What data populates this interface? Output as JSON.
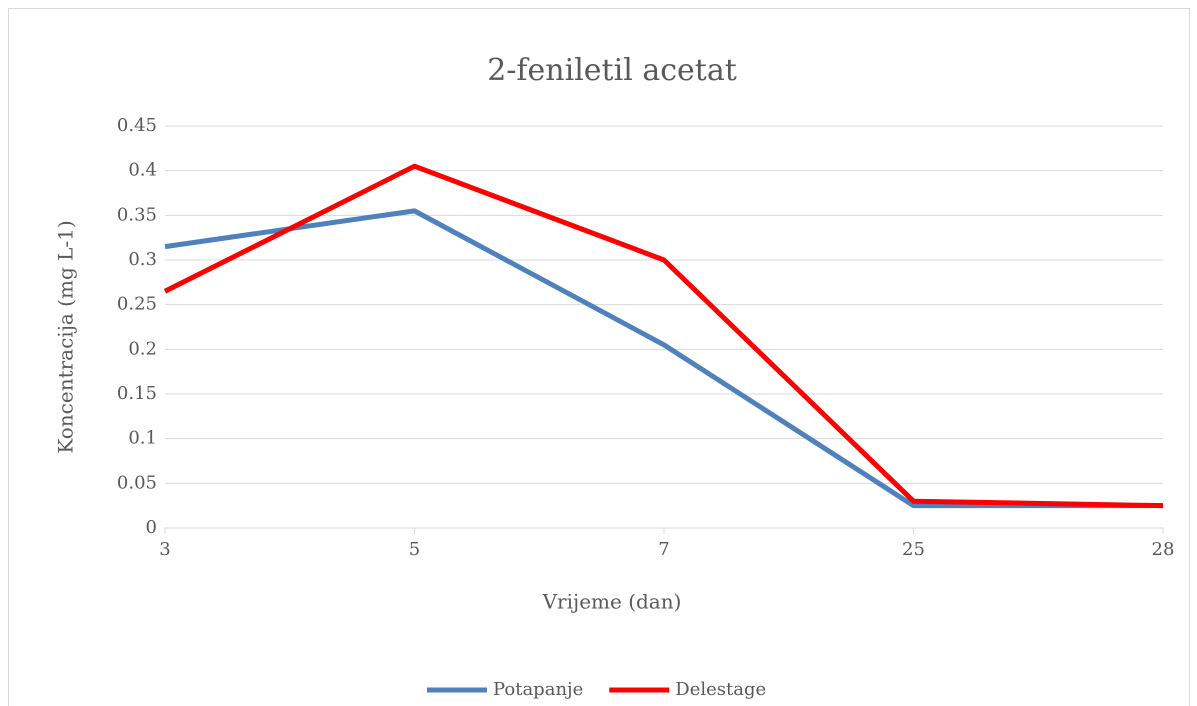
{
  "chart_data": {
    "type": "line",
    "title": "2-feniletil acetat",
    "x_label": "Vrijeme (dan)",
    "y_label": "Koncentracija (mg L-1)",
    "categories": [
      "3",
      "5",
      "7",
      "25",
      "28"
    ],
    "series": [
      {
        "name": "Potapanje",
        "color": "#4f81bd",
        "values": [
          0.315,
          0.355,
          0.205,
          0.025,
          0.025
        ]
      },
      {
        "name": "Delestage",
        "color": "#ff0000",
        "values": [
          0.265,
          0.405,
          0.3,
          0.03,
          0.025
        ]
      }
    ],
    "ylim": [
      0,
      0.45
    ],
    "yticks": [
      0,
      0.05,
      0.1,
      0.15,
      0.2,
      0.25,
      0.3,
      0.35,
      0.4,
      0.45
    ],
    "grid": true,
    "legend": "bottom"
  }
}
